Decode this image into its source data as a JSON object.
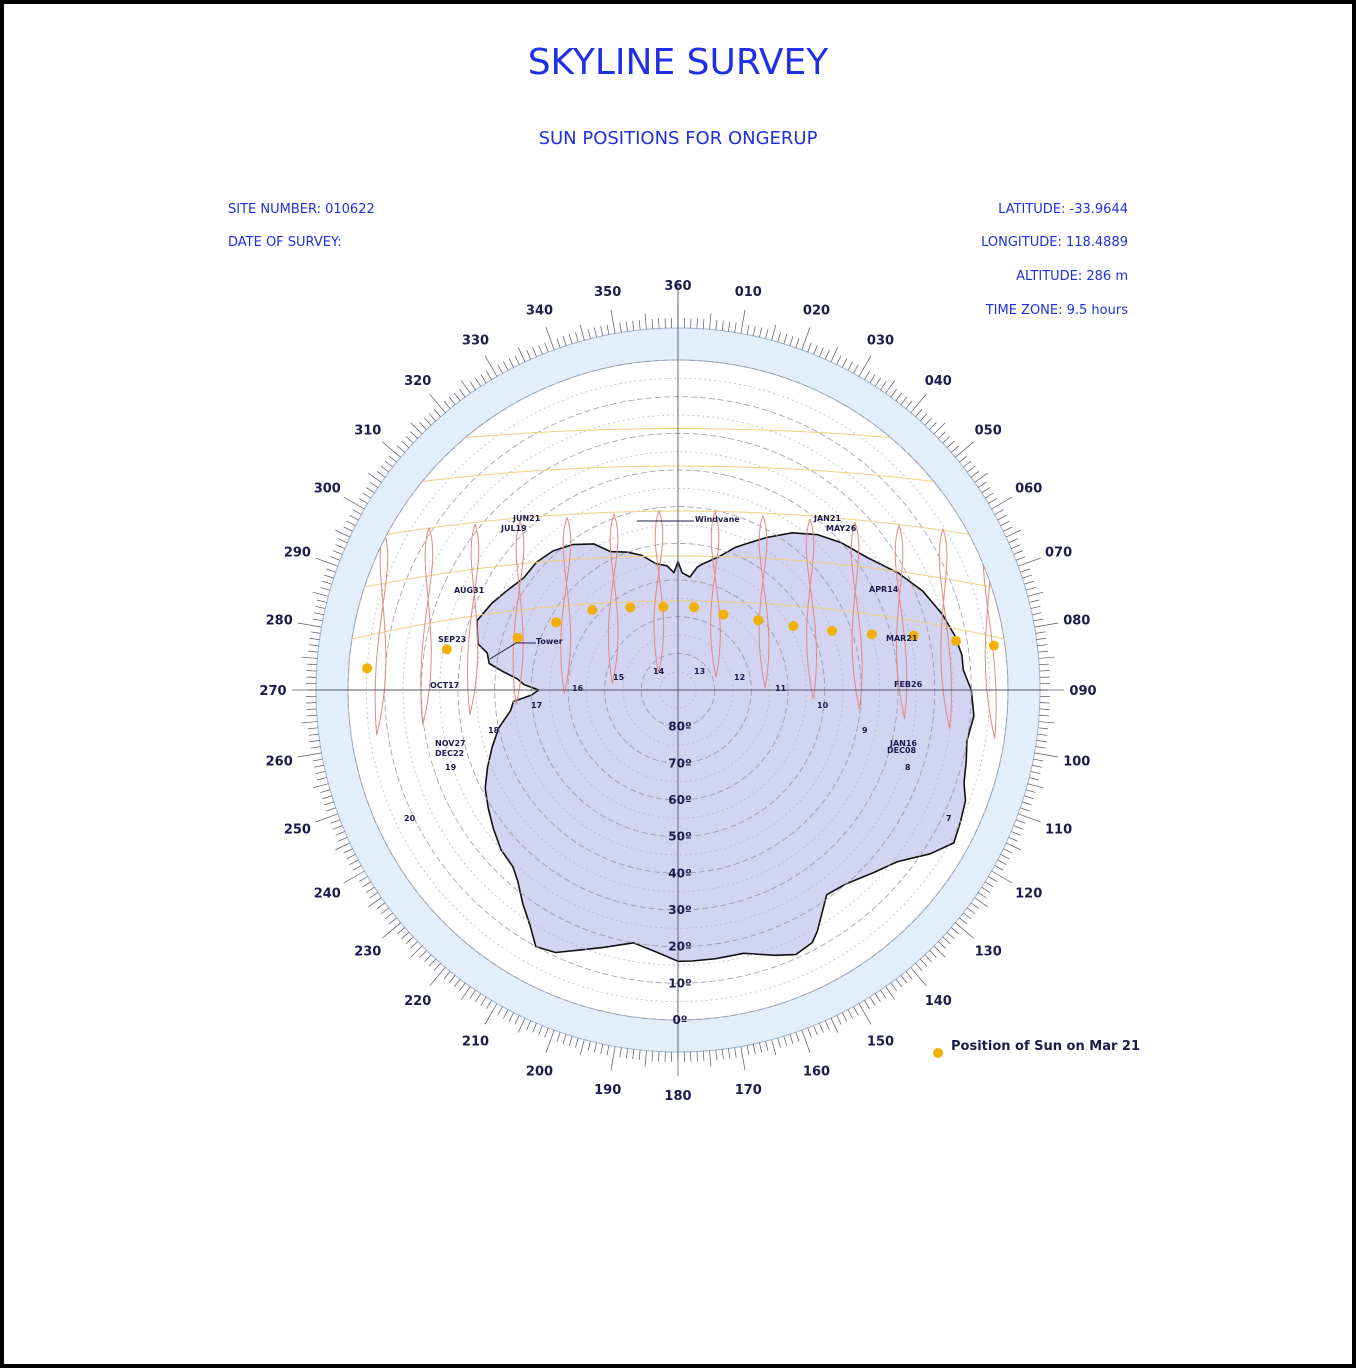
{
  "header": {
    "title": "SKYLINE SURVEY",
    "subtitle": "SUN POSITIONS FOR ONGERUP"
  },
  "site": {
    "site_number": "SITE NUMBER: 010622",
    "date_of_survey": "DATE OF SURVEY:",
    "latitude": "LATITUDE: -33.9644",
    "longitude": "LONGITUDE: 118.4889",
    "altitude": "ALTITUDE: 286 m",
    "time_zone": "TIME ZONE: 9.5 hours"
  },
  "azimuth_labels": [
    "360",
    "010",
    "020",
    "030",
    "040",
    "050",
    "060",
    "070",
    "080",
    "090",
    "100",
    "110",
    "120",
    "130",
    "140",
    "150",
    "160",
    "170",
    "180",
    "190",
    "200",
    "210",
    "220",
    "230",
    "240",
    "250",
    "260",
    "270",
    "280",
    "290",
    "300",
    "310",
    "320",
    "330",
    "340",
    "350"
  ],
  "altitude_labels": [
    "0º",
    "10º",
    "20º",
    "30º",
    "40º",
    "50º",
    "60º",
    "70º",
    "80º"
  ],
  "date_labels": [
    "JUN21",
    "JUL19",
    "JAN21",
    "MAY26",
    "AUG31",
    "APR14",
    "SEP23",
    "MAR21",
    "OCT17",
    "FEB26",
    "NOV27",
    "DEC22",
    "JAN16",
    "DEC08"
  ],
  "hour_labels": [
    "14",
    "13",
    "15",
    "12",
    "16",
    "11",
    "17",
    "10",
    "18",
    "9",
    "19",
    "8",
    "20",
    "7"
  ],
  "features": [
    "Windvane",
    "Tower"
  ],
  "legend": {
    "label": "Position of Sun on Mar 21"
  },
  "colors": {
    "text_blue": "#1f2fe6",
    "label_navy": "#1b1b4d",
    "ring_fill": "#e2eefa",
    "skyline_fill": "#d3d3f2",
    "analemma": "#e08a80",
    "sun_path": "#f0d080",
    "sun_marker": "#f2b000"
  },
  "chart_data": {
    "type": "polar-sunpath",
    "altitude_range": [
      0,
      90
    ],
    "altitude_ring_step": 5,
    "azimuth_step": 10,
    "sun_positions_mar21": [
      {
        "azimuth": 82,
        "altitude": 3
      },
      {
        "azimuth": 80,
        "altitude": 13
      },
      {
        "azimuth": 77,
        "altitude": 24
      },
      {
        "azimuth": 74,
        "altitude": 35
      },
      {
        "azimuth": 69,
        "altitude": 45
      },
      {
        "azimuth": 61,
        "altitude": 54
      },
      {
        "azimuth": 49,
        "altitude": 61
      },
      {
        "azimuth": 31,
        "altitude": 66
      },
      {
        "azimuth": 11,
        "altitude": 67
      },
      {
        "azimuth": 350,
        "altitude": 67
      },
      {
        "azimuth": 330,
        "altitude": 64
      },
      {
        "azimuth": 313,
        "altitude": 58
      },
      {
        "azimuth": 299,
        "altitude": 52
      },
      {
        "azimuth": 288,
        "altitude": 44
      },
      {
        "azimuth": 280,
        "altitude": 26
      },
      {
        "azimuth": 274,
        "altitude": 5
      }
    ],
    "skyline_polygon": [
      [
        0,
        55
      ],
      [
        2,
        58
      ],
      [
        6,
        59
      ],
      [
        9,
        56
      ],
      [
        11,
        55
      ],
      [
        17,
        52
      ],
      [
        22,
        48
      ],
      [
        25,
        46
      ],
      [
        30,
        42
      ],
      [
        36,
        37
      ],
      [
        42,
        33
      ],
      [
        48,
        30
      ],
      [
        55,
        27
      ],
      [
        62,
        22
      ],
      [
        68,
        18
      ],
      [
        74,
        15
      ],
      [
        79,
        13
      ],
      [
        83,
        12
      ],
      [
        86,
        12
      ],
      [
        90,
        10
      ],
      [
        95,
        9
      ],
      [
        100,
        10
      ],
      [
        104,
        9
      ],
      [
        108,
        8
      ],
      [
        111,
        6
      ],
      [
        115,
        5
      ],
      [
        119,
        4
      ],
      [
        123,
        8
      ],
      [
        128,
        14
      ],
      [
        133,
        17
      ],
      [
        139,
        20
      ],
      [
        144,
        21
      ],
      [
        150,
        14
      ],
      [
        152,
        12
      ],
      [
        156,
        11
      ],
      [
        160,
        13
      ],
      [
        166,
        16
      ],
      [
        172,
        16
      ],
      [
        177,
        16
      ],
      [
        180,
        16
      ],
      [
        184,
        18
      ],
      [
        190,
        20
      ],
      [
        196,
        17
      ],
      [
        201,
        14
      ],
      [
        205,
        11
      ],
      [
        209,
        10
      ],
      [
        212,
        14
      ],
      [
        216,
        18
      ],
      [
        220,
        22
      ],
      [
        223,
        24
      ],
      [
        228,
        25
      ],
      [
        233,
        27
      ],
      [
        238,
        29
      ],
      [
        243,
        31
      ],
      [
        248,
        34
      ],
      [
        253,
        37
      ],
      [
        258,
        40
      ],
      [
        263,
        44
      ],
      [
        266,
        45
      ],
      [
        268,
        50
      ],
      [
        270,
        52
      ],
      [
        272,
        48
      ],
      [
        274,
        46
      ],
      [
        276,
        42
      ],
      [
        278,
        38
      ],
      [
        281,
        37
      ],
      [
        283,
        34
      ],
      [
        289,
        32
      ],
      [
        295,
        34
      ],
      [
        300,
        36
      ],
      [
        306,
        38
      ],
      [
        312,
        38
      ],
      [
        318,
        39
      ],
      [
        324,
        41
      ],
      [
        330,
        44
      ],
      [
        334,
        48
      ],
      [
        340,
        50
      ],
      [
        345,
        52
      ],
      [
        350,
        55
      ],
      [
        355,
        56
      ],
      [
        358,
        58
      ]
    ]
  }
}
